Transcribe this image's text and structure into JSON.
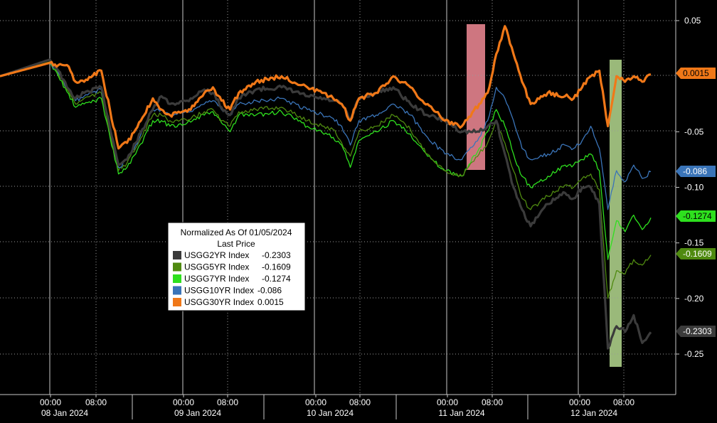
{
  "chart_data": {
    "type": "line",
    "title": "",
    "xlabel": "",
    "ylabel": "",
    "ylim": [
      -0.29,
      0.055
    ],
    "y_ticks": [
      "0.05",
      "-0.05",
      "-0.10",
      "-0.15",
      "-0.20",
      "-0.25"
    ],
    "y_tick_values": [
      0.05,
      -0.05,
      -0.1,
      -0.15,
      -0.2,
      -0.25
    ],
    "x_ticks": [
      {
        "time": "00:00",
        "day": "08 Jan 2024"
      },
      {
        "time": "08:00",
        "day": ""
      },
      {
        "time": "00:00",
        "day": "09 Jan 2024"
      },
      {
        "time": "08:00",
        "day": ""
      },
      {
        "time": "00:00",
        "day": "10 Jan 2024"
      },
      {
        "time": "08:00",
        "day": ""
      },
      {
        "time": "00:00",
        "day": "11 Jan 2024"
      },
      {
        "time": "08:00",
        "day": ""
      },
      {
        "time": "00:00",
        "day": "12 Jan 2024"
      },
      {
        "time": "08:00",
        "day": ""
      }
    ],
    "legend": {
      "title": "Normalized As Of 01/05/2024",
      "subtitle": "Last Price",
      "placement": "center-left"
    },
    "grid": true,
    "highlights": [
      {
        "from": 49.8,
        "to": 51.6,
        "color": "#f28b96"
      },
      {
        "from": 64.6,
        "to": 65.8,
        "color": "#b5d98f"
      }
    ],
    "x_unit_note": "x values are hours since 08 Jan 2024 00:00 with intraday-session axis",
    "series": [
      {
        "name": "USGG2YR Index",
        "last": "-0.2303",
        "color": "#3b3b3b",
        "x": [
          -5,
          0,
          1,
          2,
          3,
          4,
          6,
          8,
          9,
          10,
          12,
          13,
          14,
          16,
          18,
          19,
          20,
          21,
          22,
          24,
          27,
          30,
          33,
          34,
          35,
          36,
          38,
          40,
          42,
          43,
          44,
          46,
          48,
          50,
          51,
          52,
          53,
          54,
          55,
          56,
          58,
          60,
          61,
          62,
          63,
          64,
          65,
          66,
          67,
          68,
          69,
          70
        ],
        "values": [
          0.0,
          0.015,
          0.005,
          -0.01,
          -0.02,
          -0.015,
          -0.01,
          -0.08,
          -0.075,
          -0.06,
          -0.03,
          -0.018,
          -0.025,
          -0.022,
          -0.012,
          -0.015,
          -0.028,
          -0.035,
          -0.02,
          -0.012,
          -0.01,
          -0.018,
          -0.022,
          -0.025,
          -0.04,
          -0.02,
          -0.015,
          -0.01,
          -0.025,
          -0.03,
          -0.035,
          -0.04,
          -0.05,
          -0.05,
          -0.045,
          -0.04,
          -0.07,
          -0.1,
          -0.12,
          -0.135,
          -0.115,
          -0.105,
          -0.11,
          -0.1,
          -0.1,
          -0.115,
          -0.245,
          -0.225,
          -0.23,
          -0.215,
          -0.24,
          -0.2303
        ]
      },
      {
        "name": "USGG5YR Index",
        "last": "-0.1609",
        "color": "#4f8a10",
        "x": [
          -5,
          0,
          1,
          2,
          3,
          4,
          6,
          8,
          9,
          10,
          12,
          13,
          14,
          16,
          18,
          19,
          20,
          21,
          22,
          24,
          27,
          30,
          33,
          34,
          35,
          36,
          38,
          40,
          42,
          43,
          44,
          46,
          48,
          50,
          51,
          52,
          53,
          54,
          55,
          56,
          58,
          60,
          61,
          62,
          63,
          64,
          65,
          66,
          67,
          68,
          69,
          70
        ],
        "values": [
          0.0,
          0.013,
          0.002,
          -0.012,
          -0.025,
          -0.02,
          -0.015,
          -0.085,
          -0.078,
          -0.065,
          -0.035,
          -0.035,
          -0.04,
          -0.04,
          -0.032,
          -0.03,
          -0.04,
          -0.045,
          -0.032,
          -0.03,
          -0.028,
          -0.04,
          -0.048,
          -0.06,
          -0.072,
          -0.05,
          -0.045,
          -0.035,
          -0.048,
          -0.06,
          -0.07,
          -0.085,
          -0.09,
          -0.07,
          -0.06,
          -0.04,
          -0.06,
          -0.085,
          -0.11,
          -0.12,
          -0.108,
          -0.098,
          -0.1,
          -0.092,
          -0.088,
          -0.102,
          -0.2,
          -0.175,
          -0.178,
          -0.165,
          -0.17,
          -0.1609
        ]
      },
      {
        "name": "USGG7YR Index",
        "last": "-0.1274",
        "color": "#2ee01e",
        "x": [
          -5,
          0,
          1,
          2,
          3,
          4,
          6,
          8,
          9,
          10,
          12,
          13,
          14,
          16,
          18,
          19,
          20,
          21,
          22,
          24,
          27,
          30,
          33,
          34,
          35,
          36,
          38,
          40,
          42,
          43,
          44,
          46,
          48,
          50,
          51,
          52,
          53,
          54,
          55,
          56,
          58,
          60,
          61,
          62,
          63,
          64,
          65,
          66,
          67,
          68,
          69,
          70
        ],
        "values": [
          0.0,
          0.012,
          0.0,
          -0.014,
          -0.028,
          -0.025,
          -0.02,
          -0.088,
          -0.082,
          -0.07,
          -0.04,
          -0.04,
          -0.045,
          -0.042,
          -0.035,
          -0.032,
          -0.042,
          -0.05,
          -0.035,
          -0.035,
          -0.032,
          -0.045,
          -0.055,
          -0.062,
          -0.082,
          -0.058,
          -0.05,
          -0.04,
          -0.052,
          -0.062,
          -0.072,
          -0.085,
          -0.09,
          -0.065,
          -0.05,
          -0.03,
          -0.045,
          -0.07,
          -0.09,
          -0.1,
          -0.09,
          -0.08,
          -0.08,
          -0.075,
          -0.07,
          -0.085,
          -0.165,
          -0.13,
          -0.14,
          -0.125,
          -0.138,
          -0.1274
        ]
      },
      {
        "name": "USGG10YR Index",
        "last": "-0.086",
        "color": "#3a74b8",
        "x": [
          -5,
          0,
          1,
          2,
          3,
          4,
          6,
          8,
          9,
          10,
          12,
          13,
          14,
          16,
          18,
          19,
          20,
          21,
          22,
          24,
          27,
          30,
          33,
          34,
          35,
          36,
          38,
          40,
          42,
          43,
          44,
          46,
          48,
          50,
          51,
          52,
          53,
          54,
          55,
          56,
          58,
          60,
          61,
          62,
          63,
          64,
          65,
          66,
          67,
          68,
          69,
          70
        ],
        "values": [
          0.0,
          0.012,
          0.003,
          -0.01,
          -0.022,
          -0.018,
          -0.012,
          -0.082,
          -0.075,
          -0.062,
          -0.03,
          -0.03,
          -0.035,
          -0.032,
          -0.025,
          -0.022,
          -0.03,
          -0.035,
          -0.025,
          -0.022,
          -0.02,
          -0.03,
          -0.038,
          -0.045,
          -0.062,
          -0.04,
          -0.035,
          -0.025,
          -0.035,
          -0.045,
          -0.055,
          -0.07,
          -0.075,
          -0.055,
          -0.04,
          -0.01,
          -0.02,
          -0.04,
          -0.065,
          -0.075,
          -0.07,
          -0.062,
          -0.065,
          -0.058,
          -0.045,
          -0.065,
          -0.12,
          -0.085,
          -0.095,
          -0.08,
          -0.092,
          -0.086
        ]
      },
      {
        "name": "USGG30YR Index",
        "last": "0.0015",
        "color": "#f07818",
        "x": [
          -5,
          0,
          1,
          2,
          3,
          4,
          6,
          8,
          9,
          10,
          12,
          13,
          14,
          16,
          18,
          19,
          20,
          21,
          22,
          24,
          27,
          30,
          33,
          34,
          35,
          36,
          38,
          40,
          42,
          43,
          44,
          46,
          48,
          50,
          51,
          52,
          53,
          54,
          55,
          56,
          58,
          60,
          61,
          62,
          63,
          64,
          65,
          66,
          67,
          68,
          69,
          70
        ],
        "values": [
          0.0,
          0.012,
          0.01,
          0.01,
          -0.005,
          -0.005,
          0.005,
          -0.065,
          -0.06,
          -0.048,
          -0.02,
          -0.03,
          -0.035,
          -0.032,
          -0.015,
          -0.01,
          -0.022,
          -0.03,
          -0.015,
          -0.005,
          0.0,
          -0.01,
          -0.02,
          -0.025,
          -0.04,
          -0.02,
          -0.015,
          0.0,
          -0.01,
          -0.02,
          -0.025,
          -0.04,
          -0.045,
          -0.025,
          -0.015,
          0.02,
          0.045,
          0.02,
          -0.005,
          -0.025,
          -0.015,
          -0.018,
          -0.02,
          -0.01,
          0.0,
          0.005,
          -0.045,
          0.0,
          -0.005,
          0.0,
          -0.005,
          0.0015
        ]
      }
    ]
  }
}
